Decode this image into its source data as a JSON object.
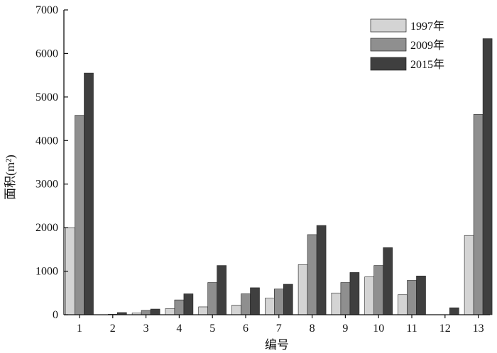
{
  "chart_data": {
    "type": "bar",
    "title": "",
    "xlabel": "编号",
    "ylabel": "面积(m²)",
    "ylim": [
      0,
      7000
    ],
    "yticks": [
      0,
      1000,
      2000,
      3000,
      4000,
      5000,
      6000,
      7000
    ],
    "grid": false,
    "legend_position": "top-right",
    "categories": [
      "1",
      "2",
      "3",
      "4",
      "5",
      "6",
      "7",
      "8",
      "9",
      "10",
      "11",
      "12",
      "13"
    ],
    "series": [
      {
        "name": "1997年",
        "color": "#d4d4d4",
        "values": [
          2000,
          0,
          40,
          140,
          180,
          220,
          380,
          1150,
          500,
          870,
          460,
          0,
          1820
        ]
      },
      {
        "name": "2009年",
        "color": "#8f8f8f",
        "values": [
          4580,
          10,
          100,
          340,
          740,
          480,
          590,
          1840,
          740,
          1130,
          790,
          0,
          4600
        ]
      },
      {
        "name": "2015年",
        "color": "#3f3f3f",
        "values": [
          5550,
          50,
          130,
          480,
          1130,
          620,
          700,
          2050,
          970,
          1540,
          890,
          160,
          6340
        ]
      }
    ]
  }
}
